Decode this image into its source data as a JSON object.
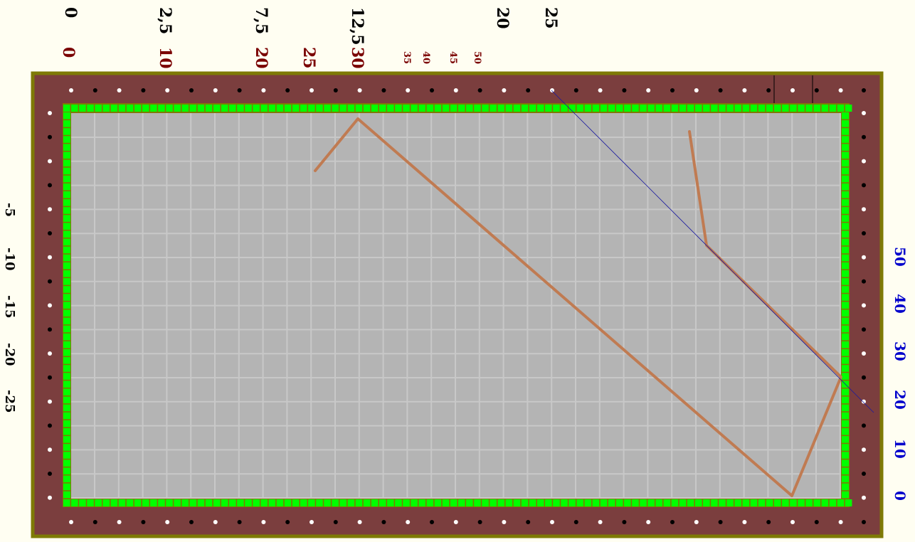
{
  "colors": {
    "background": "#fffef2",
    "frame": "#7e7a06",
    "board": "#7b3e3e",
    "rail": "#00ff00",
    "field": "#b4b4b4",
    "grid": "#c8c8c8",
    "path": "#c07b52",
    "guide": "#1a1aa0",
    "top_scale_a": "#000000",
    "top_scale_b": "#7a0000",
    "right_scale": "#0000cc",
    "left_scale": "#000000"
  },
  "top_scale_a": [
    "0",
    "2,5",
    "7,5",
    "12,5",
    "20",
    "25"
  ],
  "top_scale_b": [
    "0",
    "10",
    "20",
    "25",
    "30",
    "35",
    "40",
    "45",
    "50"
  ],
  "left_scale": [
    "-5",
    "-10",
    "-15",
    "-20",
    "-25"
  ],
  "right_scale": [
    "50",
    "40",
    "30",
    "20",
    "10",
    "0"
  ]
}
